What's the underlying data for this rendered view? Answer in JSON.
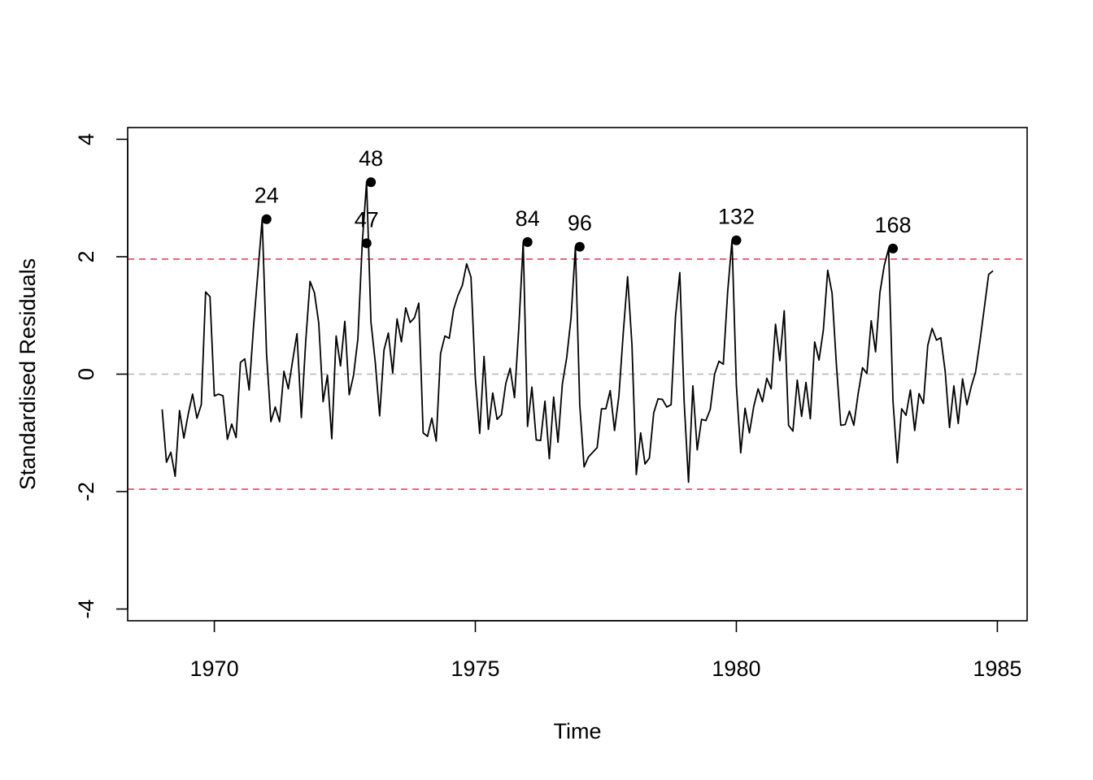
{
  "chart_data": {
    "type": "line",
    "title": "",
    "xlabel": "Time",
    "ylabel": "Standardised Residuals",
    "xlim": [
      1968.34,
      1985.57
    ],
    "ylim": [
      -4.2,
      4.2
    ],
    "x_ticks": [
      1970,
      1975,
      1980,
      1985
    ],
    "x_tick_labels": [
      "1970",
      "1975",
      "1980",
      "1985"
    ],
    "y_ticks": [
      -4,
      -2,
      0,
      2,
      4
    ],
    "y_tick_labels": [
      "-4",
      "-2",
      "0",
      "2",
      "4"
    ],
    "x_start": 1969.0,
    "x_step": 0.0833333,
    "reference_lines": [
      {
        "y": 1.96,
        "color": "#DF536B",
        "style": "dashed"
      },
      {
        "y": -1.96,
        "color": "#DF536B",
        "style": "dashed"
      },
      {
        "y": 0,
        "color": "#BEBEBE",
        "style": "dashed"
      }
    ],
    "series": [
      {
        "color": "#000000",
        "values": [
          -0.6,
          -1.5,
          -1.33,
          -1.74,
          -0.62,
          -1.09,
          -0.68,
          -0.34,
          -0.75,
          -0.52,
          1.4,
          1.32,
          -0.37,
          -0.34,
          -0.37,
          -1.11,
          -0.85,
          -1.08,
          0.2,
          0.26,
          -0.27,
          0.8,
          1.72,
          2.64,
          0.35,
          -0.81,
          -0.56,
          -0.81,
          0.05,
          -0.25,
          0.23,
          0.69,
          -0.74,
          0.55,
          1.58,
          1.39,
          0.87,
          -0.47,
          -0.02,
          -1.1,
          0.65,
          0.14,
          0.9,
          -0.35,
          -0.02,
          0.6,
          2.23,
          3.27,
          0.89,
          0.2,
          -0.71,
          0.41,
          0.7,
          0.02,
          0.94,
          0.55,
          1.13,
          0.88,
          0.96,
          1.21,
          -1.0,
          -1.06,
          -0.75,
          -1.14,
          0.35,
          0.65,
          0.61,
          1.1,
          1.34,
          1.51,
          1.88,
          1.65,
          -0.07,
          -1.01,
          0.3,
          -0.94,
          -0.32,
          -0.77,
          -0.69,
          -0.16,
          0.1,
          -0.4,
          0.8,
          2.25,
          -0.89,
          -0.22,
          -1.12,
          -1.13,
          -0.46,
          -1.44,
          -0.39,
          -1.16,
          -0.17,
          0.28,
          0.96,
          2.17,
          -0.52,
          -1.58,
          -1.41,
          -1.33,
          -1.25,
          -0.59,
          -0.59,
          -0.28,
          -0.96,
          -0.37,
          0.7,
          1.66,
          0.5,
          -1.71,
          -1.0,
          -1.53,
          -1.43,
          -0.66,
          -0.42,
          -0.43,
          -0.56,
          -0.52,
          0.97,
          1.73,
          -0.47,
          -1.84,
          -0.2,
          -1.29,
          -0.77,
          -0.79,
          -0.6,
          0.0,
          0.22,
          0.17,
          1.4,
          2.28,
          -0.19,
          -1.34,
          -0.58,
          -1.0,
          -0.55,
          -0.25,
          -0.47,
          -0.07,
          -0.25,
          0.85,
          0.23,
          1.08,
          -0.87,
          -0.97,
          -0.1,
          -0.72,
          -0.14,
          -0.76,
          0.55,
          0.24,
          0.75,
          1.77,
          1.38,
          0.16,
          -0.87,
          -0.86,
          -0.63,
          -0.87,
          -0.33,
          0.11,
          0.01,
          0.91,
          0.38,
          1.39,
          1.85,
          2.14,
          -0.45,
          -1.51,
          -0.59,
          -0.7,
          -0.27,
          -0.96,
          -0.33,
          -0.5,
          0.49,
          0.78,
          0.58,
          0.62,
          0.05,
          -0.91,
          -0.2,
          -0.84,
          -0.08,
          -0.52,
          -0.21,
          0.04,
          0.56,
          1.13,
          1.7,
          1.76
        ]
      }
    ],
    "outliers": [
      {
        "index": 24,
        "label": "24",
        "value": 2.64
      },
      {
        "index": 47,
        "label": "47",
        "value": 2.23
      },
      {
        "index": 48,
        "label": "48",
        "value": 3.27
      },
      {
        "index": 84,
        "label": "84",
        "value": 2.25
      },
      {
        "index": 96,
        "label": "96",
        "value": 2.17
      },
      {
        "index": 132,
        "label": "132",
        "value": 2.28
      },
      {
        "index": 168,
        "label": "168",
        "value": 2.14
      }
    ]
  }
}
